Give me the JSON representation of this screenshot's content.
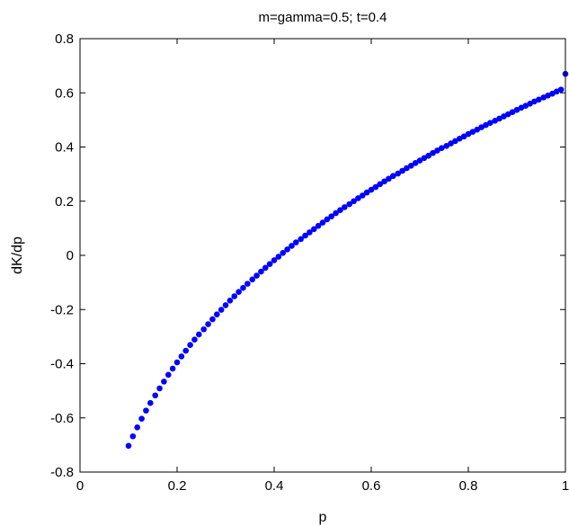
{
  "chart_data": {
    "type": "scatter",
    "title": "m=gamma=0.5; t=0.4",
    "xlabel": "p",
    "ylabel": "dK/dp",
    "xlim": [
      0,
      1
    ],
    "ylim": [
      -0.8,
      0.8
    ],
    "xticks": [
      "0",
      "0.2",
      "0.4",
      "0.6",
      "0.8",
      "1"
    ],
    "yticks": [
      "-0.8",
      "-0.6",
      "-0.4",
      "-0.2",
      "0",
      "0.2",
      "0.4",
      "0.6",
      "0.8"
    ],
    "grid": false,
    "marker_color": "#0000ff",
    "series": [
      {
        "x": [
          0.1,
          0.109,
          0.118,
          0.127,
          0.136,
          0.145,
          0.155,
          0.164,
          0.173,
          0.182,
          0.191,
          0.2,
          0.209,
          0.218,
          0.227,
          0.236,
          0.245,
          0.255,
          0.264,
          0.273,
          0.282,
          0.291,
          0.3,
          0.309,
          0.318,
          0.327,
          0.336,
          0.345,
          0.355,
          0.364,
          0.373,
          0.382,
          0.391,
          0.4,
          0.409,
          0.418,
          0.427,
          0.436,
          0.445,
          0.455,
          0.464,
          0.473,
          0.482,
          0.491,
          0.5,
          0.509,
          0.518,
          0.527,
          0.536,
          0.545,
          0.555,
          0.564,
          0.573,
          0.582,
          0.591,
          0.6,
          0.609,
          0.618,
          0.627,
          0.636,
          0.645,
          0.655,
          0.664,
          0.673,
          0.682,
          0.691,
          0.7,
          0.709,
          0.718,
          0.727,
          0.736,
          0.745,
          0.755,
          0.764,
          0.773,
          0.782,
          0.791,
          0.8,
          0.809,
          0.818,
          0.827,
          0.836,
          0.845,
          0.855,
          0.864,
          0.873,
          0.882,
          0.891,
          0.9,
          0.909,
          0.918,
          0.927,
          0.936,
          0.945,
          0.955,
          0.964,
          0.973,
          0.982,
          0.991,
          1.0
        ],
        "y": [
          -0.703,
          -0.668,
          -0.635,
          -0.603,
          -0.573,
          -0.545,
          -0.517,
          -0.491,
          -0.466,
          -0.441,
          -0.418,
          -0.395,
          -0.373,
          -0.352,
          -0.331,
          -0.311,
          -0.292,
          -0.273,
          -0.254,
          -0.236,
          -0.218,
          -0.201,
          -0.184,
          -0.167,
          -0.151,
          -0.135,
          -0.12,
          -0.105,
          -0.089,
          -0.075,
          -0.06,
          -0.046,
          -0.032,
          -0.018,
          -0.005,
          0.009,
          0.022,
          0.035,
          0.048,
          0.06,
          0.073,
          0.085,
          0.097,
          0.109,
          0.121,
          0.133,
          0.144,
          0.156,
          0.167,
          0.178,
          0.189,
          0.2,
          0.211,
          0.221,
          0.232,
          0.242,
          0.252,
          0.263,
          0.273,
          0.283,
          0.293,
          0.302,
          0.312,
          0.322,
          0.331,
          0.341,
          0.35,
          0.359,
          0.368,
          0.378,
          0.387,
          0.396,
          0.404,
          0.413,
          0.422,
          0.431,
          0.439,
          0.448,
          0.456,
          0.464,
          0.473,
          0.481,
          0.489,
          0.497,
          0.505,
          0.513,
          0.521,
          0.529,
          0.537,
          0.545,
          0.552,
          0.56,
          0.568,
          0.575,
          0.583,
          0.59,
          0.597,
          0.605,
          0.612,
          0.67
        ]
      }
    ]
  }
}
